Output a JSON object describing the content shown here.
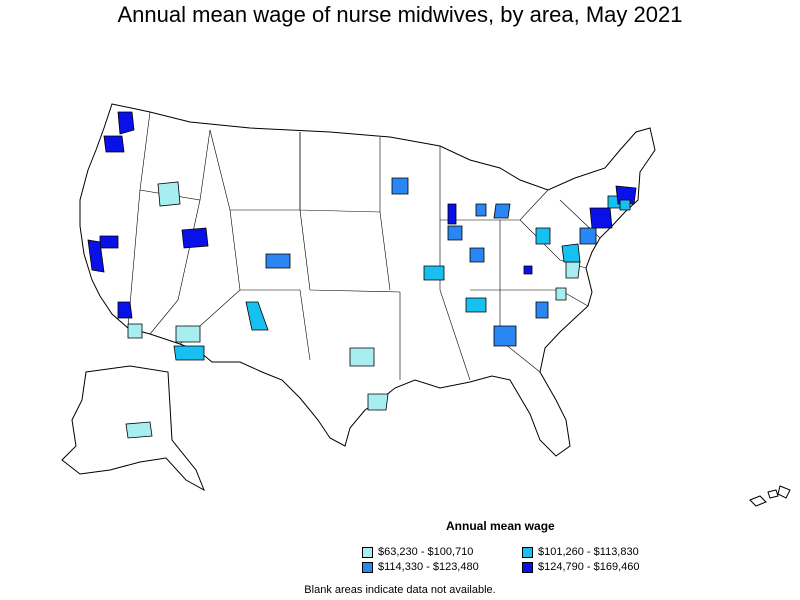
{
  "title": "Annual mean wage of nurse midwives, by area, May 2021",
  "legend": {
    "title": "Annual mean wage",
    "items": [
      {
        "label": "$63,230 - $100,710",
        "color": "#a6eef0"
      },
      {
        "label": "$101,260 - $113,830",
        "color": "#18c0f2"
      },
      {
        "label": "$114,330 - $123,480",
        "color": "#2a86f2"
      },
      {
        "label": "$124,790 - $169,460",
        "color": "#0a10e8"
      }
    ]
  },
  "footnote": "Blank areas indicate data not available.",
  "colors": {
    "outline": "#000000",
    "no_data": "#ffffff"
  }
}
